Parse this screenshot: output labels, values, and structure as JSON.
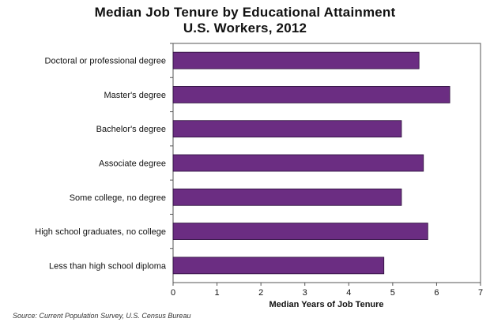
{
  "chart_data": {
    "type": "bar",
    "orientation": "horizontal",
    "title": "Median Job Tenure by Educational Attainment",
    "subtitle": "U.S. Workers, 2012",
    "xlabel": "Median Years of Job Tenure",
    "ylabel": "",
    "xlim": [
      0,
      7
    ],
    "xticks": [
      "0",
      "1",
      "2",
      "3",
      "4",
      "5",
      "6",
      "7"
    ],
    "categories": [
      "Doctoral or professional degree",
      "Master's degree",
      "Bachelor's degree",
      "Associate degree",
      "Some college, no degree",
      "High school graduates, no college",
      "Less than high school diploma"
    ],
    "values": [
      5.6,
      6.3,
      5.2,
      5.7,
      5.2,
      5.8,
      4.8
    ],
    "grid": false,
    "legend": "none",
    "bar_color": "#6B2D82"
  },
  "source_note": "Source: Current Population Survey, U.S. Census Bureau"
}
